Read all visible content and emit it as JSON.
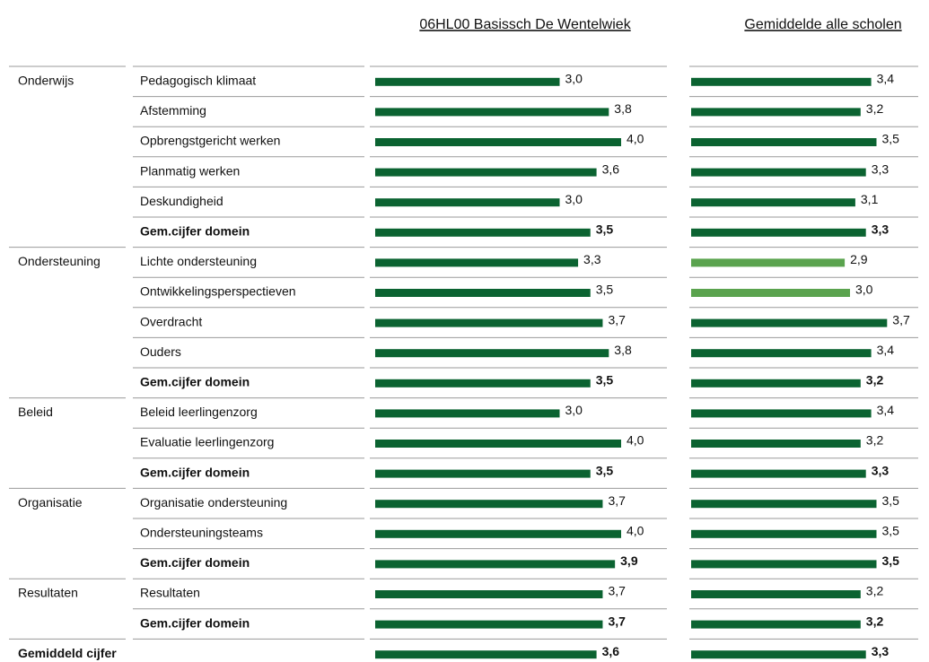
{
  "headers": {
    "school": "06HL00 Basissch De Wentelwiek",
    "average": "Gemiddelde alle scholen"
  },
  "bar_color": "#0b6331",
  "groups": [
    {
      "domain": "Onderwijs",
      "items": [
        {
          "label": "Pedagogisch klimaat",
          "school": 3.0,
          "school_label": "3,0",
          "average": 3.4,
          "average_label": "3,4"
        },
        {
          "label": "Afstemming",
          "school": 3.8,
          "school_label": "3,8",
          "average": 3.2,
          "average_label": "3,2"
        },
        {
          "label": "Opbrengstgericht werken",
          "school": 4.0,
          "school_label": "4,0",
          "average": 3.5,
          "average_label": "3,5"
        },
        {
          "label": "Planmatig werken",
          "school": 3.6,
          "school_label": "3,6",
          "average": 3.3,
          "average_label": "3,3"
        },
        {
          "label": "Deskundigheid",
          "school": 3.0,
          "school_label": "3,0",
          "average": 3.1,
          "average_label": "3,1"
        }
      ],
      "summary": {
        "label": "Gem.cijfer domein",
        "school": 3.5,
        "school_label": "3,5",
        "average": 3.3,
        "average_label": "3,3"
      }
    },
    {
      "domain": "Ondersteuning",
      "items": [
        {
          "label": "Lichte ondersteuning",
          "school": 3.3,
          "school_label": "3,3",
          "average": 2.9,
          "average_label": "2,9",
          "average_color": "#5aa34e"
        },
        {
          "label": "Ontwikkelingsperspectieven",
          "school": 3.5,
          "school_label": "3,5",
          "average": 3.0,
          "average_label": "3,0",
          "average_color": "#5aa34e"
        },
        {
          "label": "Overdracht",
          "school": 3.7,
          "school_label": "3,7",
          "average": 3.7,
          "average_label": "3,7"
        },
        {
          "label": "Ouders",
          "school": 3.8,
          "school_label": "3,8",
          "average": 3.4,
          "average_label": "3,4"
        }
      ],
      "summary": {
        "label": "Gem.cijfer domein",
        "school": 3.5,
        "school_label": "3,5",
        "average": 3.2,
        "average_label": "3,2"
      }
    },
    {
      "domain": "Beleid",
      "items": [
        {
          "label": "Beleid leerlingenzorg",
          "school": 3.0,
          "school_label": "3,0",
          "average": 3.4,
          "average_label": "3,4"
        },
        {
          "label": "Evaluatie leerlingenzorg",
          "school": 4.0,
          "school_label": "4,0",
          "average": 3.2,
          "average_label": "3,2"
        }
      ],
      "summary": {
        "label": "Gem.cijfer domein",
        "school": 3.5,
        "school_label": "3,5",
        "average": 3.3,
        "average_label": "3,3"
      }
    },
    {
      "domain": "Organisatie",
      "items": [
        {
          "label": "Organisatie ondersteuning",
          "school": 3.7,
          "school_label": "3,7",
          "average": 3.5,
          "average_label": "3,5"
        },
        {
          "label": "Ondersteuningsteams",
          "school": 4.0,
          "school_label": "4,0",
          "average": 3.5,
          "average_label": "3,5"
        }
      ],
      "summary": {
        "label": "Gem.cijfer domein",
        "school": 3.9,
        "school_label": "3,9",
        "average": 3.5,
        "average_label": "3,5"
      }
    },
    {
      "domain": "Resultaten",
      "items": [
        {
          "label": "Resultaten",
          "school": 3.7,
          "school_label": "3,7",
          "average": 3.2,
          "average_label": "3,2"
        }
      ],
      "summary": {
        "label": "Gem.cijfer domein",
        "school": 3.7,
        "school_label": "3,7",
        "average": 3.2,
        "average_label": "3,2"
      }
    }
  ],
  "overall": {
    "label": "Gemiddeld cijfer",
    "school": 3.6,
    "school_label": "3,6",
    "average": 3.3,
    "average_label": "3,3"
  }
}
